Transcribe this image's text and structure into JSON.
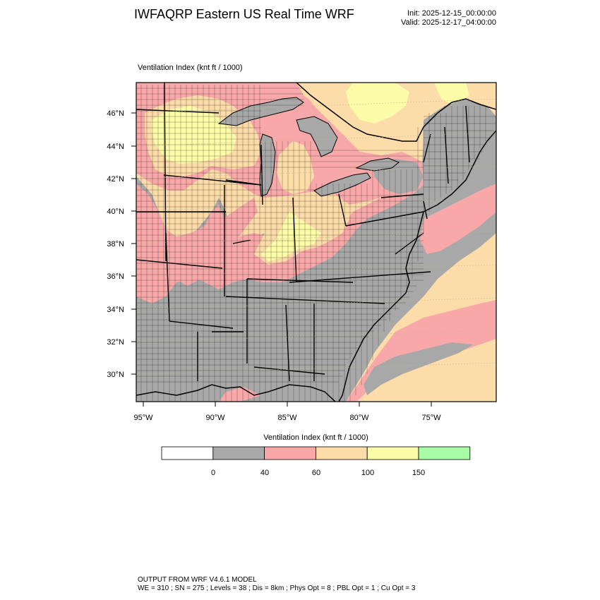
{
  "title": "IWFAQRP Eastern US Real Time WRF",
  "init_text": "Init: 2025-12-15_00:00:00",
  "valid_text": "Valid: 2025-12-17_04:00:00",
  "field_label": "Ventilation Index   (knt ft / 1000)",
  "lat_ticks": [
    "46°N",
    "44°N",
    "42°N",
    "40°N",
    "38°N",
    "36°N",
    "34°N",
    "32°N",
    "30°N"
  ],
  "lon_ticks": [
    "95°W",
    "90°W",
    "85°W",
    "80°W",
    "75°W"
  ],
  "legend": {
    "title": "Ventilation Index  (knt ft / 1000)",
    "boundaries": [
      "0",
      "40",
      "60",
      "100",
      "150"
    ],
    "bins": [
      {
        "range": "< 0",
        "color": "#ffffff"
      },
      {
        "range": "0-40",
        "color": "#a8a8a8"
      },
      {
        "range": "40-60",
        "color": "#f8a8a8"
      },
      {
        "range": "60-100",
        "color": "#fcdca8"
      },
      {
        "range": "100-150",
        "color": "#fcfca8"
      },
      {
        "range": "> 150",
        "color": "#a8fca8"
      }
    ]
  },
  "colors": {
    "gray": "#a8a8a8",
    "pink": "#f8a8a8",
    "tan": "#fcdca8",
    "yellow": "#fcfca8",
    "green": "#a8fca8"
  },
  "footer": {
    "line1": "OUTPUT FROM WRF V4.6.1 MODEL",
    "line2": "WE = 310 ; SN = 275 ; Levels = 38 ; Dis = 8km ; Phys Opt = 8 ; PBL Opt = 1 ; Cu Opt = 3"
  }
}
